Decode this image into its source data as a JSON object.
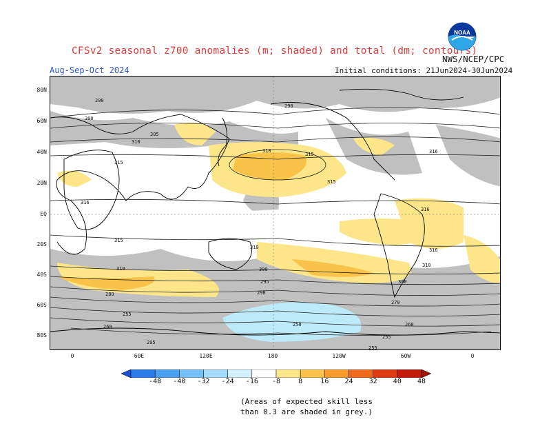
{
  "title": "CFSv2 seasonal z700 anomalies (m; shaded) and total (dm; contours)",
  "agency": "NWS/NCEP/CPC",
  "logo_text": "NOAA",
  "season": "Aug-Sep-Oct 2024",
  "initial_conditions": "Initial conditions: 21Jun2024-30Jun2024",
  "lat_labels": [
    "80N",
    "60N",
    "40N",
    "20N",
    "EQ",
    "20S",
    "40S",
    "60S",
    "80S"
  ],
  "lon_labels": [
    "0",
    "60E",
    "120E",
    "180",
    "120W",
    "60W",
    "0"
  ],
  "legend": {
    "ticks": [
      "-48",
      "-40",
      "-32",
      "-24",
      "-16",
      "-8",
      "8",
      "16",
      "24",
      "32",
      "40",
      "48"
    ],
    "colors": [
      "#1a4fd6",
      "#2b7ce8",
      "#4a9ff0",
      "#74c0f7",
      "#a6dcfb",
      "#d5f0fd",
      "#ffffff",
      "#fde68a",
      "#f9c34a",
      "#f89b2c",
      "#f06a1e",
      "#e03a12",
      "#c41a0a",
      "#a01208"
    ]
  },
  "contour_labels": [
    "290",
    "300",
    "305",
    "310",
    "315",
    "316",
    "295",
    "280",
    "270",
    "260",
    "255",
    "250"
  ],
  "colors": {
    "grey_mask": "#c0c0c0",
    "positive_light": "#fde68a",
    "positive_med": "#f9c34a",
    "negative_light": "#bdeaf9",
    "title": "#e23b3b",
    "season": "#3355dd"
  },
  "notes": [
    "(Areas of expected skill less",
    "than 0.3 are shaded in grey.)"
  ]
}
